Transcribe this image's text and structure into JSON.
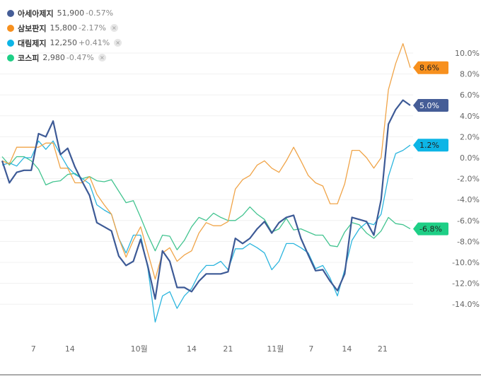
{
  "chart_data": {
    "type": "line",
    "yformat": "%",
    "ylim": [
      -14,
      10
    ],
    "yticks": [
      10,
      8,
      6,
      4,
      2,
      0,
      -2,
      -4,
      -6,
      -8,
      -10,
      -12,
      -14
    ],
    "ytick_labels": [
      "10.0%",
      "8.0%",
      "6.0%",
      "4.0%",
      "2.0%",
      "0.0%",
      "-2.0%",
      "-4.0%",
      "-6.0%",
      "-8.0%",
      "-10.0%",
      "-12.0%",
      "-14.0%"
    ],
    "x_count": 57,
    "xticks": [
      {
        "label": "7",
        "index": 4.3
      },
      {
        "label": "14",
        "index": 9.3
      },
      {
        "label": "10월",
        "index": 18.8
      },
      {
        "label": "14",
        "index": 26
      },
      {
        "label": "21",
        "index": 31
      },
      {
        "label": "11월",
        "index": 37.5
      },
      {
        "label": "7",
        "index": 42.4
      },
      {
        "label": "14",
        "index": 47.3
      },
      {
        "label": "21",
        "index": 52.2
      }
    ],
    "series": [
      {
        "name": "아세아제지",
        "price": "51,900",
        "change": "-0.57%",
        "closable": false,
        "color": "#3d5a96",
        "tag_color": "#455d97",
        "width": 2.2,
        "end_label": "5.0%",
        "values": [
          -0.3,
          -2.4,
          -1.4,
          -1.2,
          -1.2,
          2.3,
          2.0,
          3.5,
          0.3,
          0.9,
          -0.9,
          -2.3,
          -3.6,
          -6.2,
          -6.6,
          -7.0,
          -9.4,
          -10.3,
          -9.9,
          -7.8,
          -10.4,
          -13.5,
          -8.9,
          -9.9,
          -12.4,
          -12.4,
          -12.8,
          -11.8,
          -11.1,
          -11.1,
          -11.1,
          -10.9,
          -7.7,
          -8.2,
          -7.7,
          -6.8,
          -6.1,
          -7.2,
          -6.2,
          -5.7,
          -5.5,
          -7.7,
          -9.3,
          -10.8,
          -10.7,
          -11.8,
          -12.7,
          -11.1,
          -5.7,
          -5.9,
          -6.1,
          -7.4,
          -4.0,
          3.2,
          4.6,
          5.5,
          5.0
        ]
      },
      {
        "name": "삼보판지",
        "price": "15,800",
        "change": "-2.17%",
        "closable": true,
        "color": "#f0a448",
        "tag_color": "#f7901e",
        "width": 1.3,
        "end_label": "8.6%",
        "values": [
          -0.3,
          -0.6,
          1.0,
          1.0,
          1.0,
          1.0,
          1.4,
          1.4,
          -1.0,
          -1.0,
          -2.4,
          -2.4,
          -1.8,
          -3.5,
          -4.5,
          -5.4,
          -7.7,
          -9.5,
          -7.9,
          -6.6,
          -9.1,
          -11.6,
          -9.1,
          -8.6,
          -9.9,
          -9.3,
          -8.9,
          -7.2,
          -6.2,
          -6.5,
          -6.5,
          -6.1,
          -3.0,
          -2.1,
          -1.7,
          -0.7,
          -0.3,
          -1.0,
          -1.4,
          -0.3,
          1.0,
          -0.3,
          -1.7,
          -2.4,
          -2.7,
          -4.4,
          -4.4,
          -2.5,
          0.7,
          0.7,
          0.0,
          -1.0,
          0.0,
          6.5,
          9.0,
          10.9,
          8.6
        ]
      },
      {
        "name": "대림제지",
        "price": "12,250",
        "change": "+0.41%",
        "closable": true,
        "color": "#2cb5de",
        "tag_color": "#0db5e6",
        "width": 1.3,
        "end_label": "1.2%",
        "values": [
          -0.7,
          -0.5,
          -0.8,
          0.0,
          0.0,
          1.6,
          0.8,
          1.6,
          0.3,
          -0.9,
          -1.6,
          -2.0,
          -2.5,
          -4.5,
          -5.0,
          -5.4,
          -7.7,
          -9.1,
          -7.4,
          -7.4,
          -10.6,
          -15.7,
          -13.2,
          -12.8,
          -14.4,
          -13.2,
          -12.5,
          -11.1,
          -10.3,
          -10.3,
          -9.9,
          -10.7,
          -8.7,
          -8.7,
          -8.2,
          -8.6,
          -9.1,
          -10.7,
          -9.9,
          -8.2,
          -8.2,
          -8.6,
          -9.1,
          -10.6,
          -10.3,
          -11.5,
          -13.2,
          -10.7,
          -7.9,
          -6.8,
          -6.2,
          -6.4,
          -5.4,
          -1.8,
          0.4,
          0.7,
          1.2
        ]
      },
      {
        "name": "코스피",
        "price": "2,980",
        "change": "-0.47%",
        "closable": true,
        "color": "#43c490",
        "tag_color": "#1ecf86",
        "width": 1.3,
        "end_label": "-6.8%",
        "values": [
          0.1,
          -0.7,
          0.1,
          0.1,
          -0.3,
          -1.1,
          -2.6,
          -2.3,
          -2.2,
          -1.6,
          -1.5,
          -2.0,
          -1.8,
          -2.2,
          -2.3,
          -2.1,
          -3.2,
          -4.3,
          -4.1,
          -5.7,
          -7.4,
          -8.9,
          -7.4,
          -7.5,
          -8.8,
          -7.9,
          -6.6,
          -5.7,
          -6.0,
          -5.3,
          -5.7,
          -6.0,
          -6.0,
          -5.5,
          -4.7,
          -5.4,
          -5.9,
          -7.1,
          -6.8,
          -5.8,
          -6.9,
          -6.8,
          -7.1,
          -7.4,
          -7.4,
          -8.4,
          -8.5,
          -7.1,
          -6.2,
          -6.4,
          -7.2,
          -7.7,
          -7.0,
          -5.7,
          -6.3,
          -6.4,
          -6.8
        ]
      }
    ]
  },
  "legend": {
    "close_glyph": "×"
  }
}
